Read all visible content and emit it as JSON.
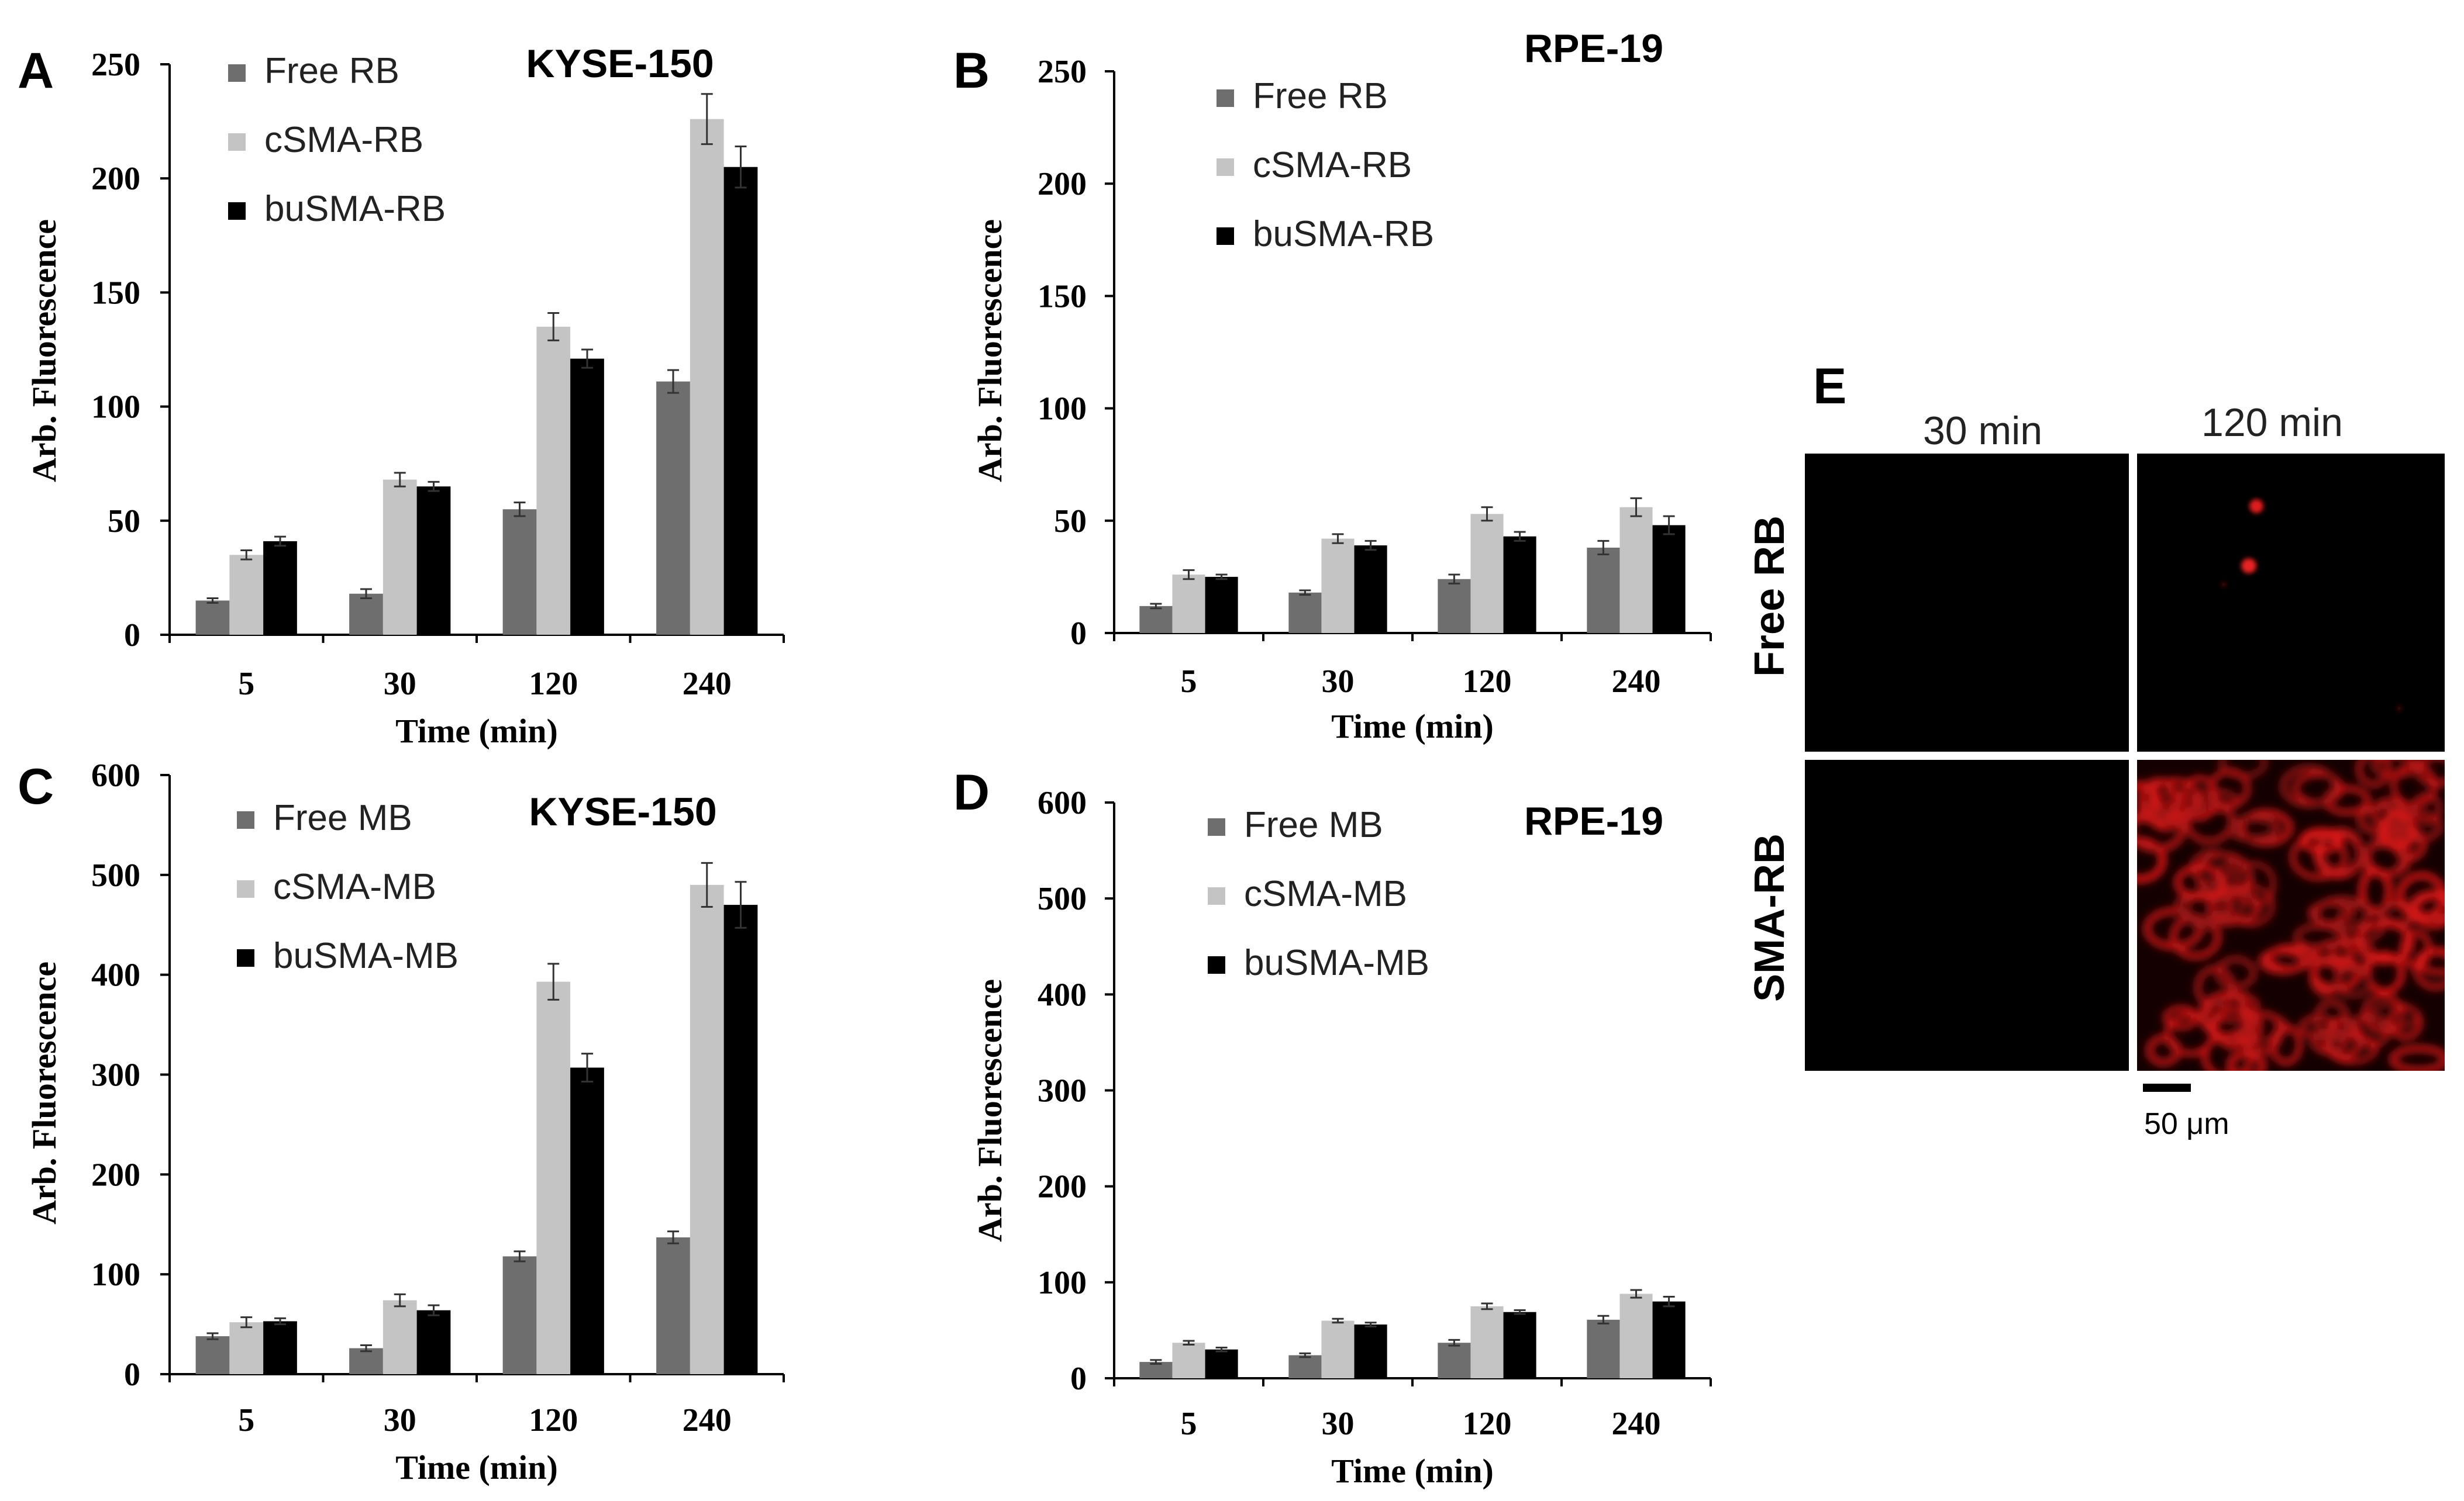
{
  "colors": {
    "free": "#6e6e6e",
    "csma": "#c4c4c4",
    "busma": "#000000",
    "axis": "#000000",
    "cell_red": "#d01515",
    "micro_bg": "#000000"
  },
  "chart_data": [
    {
      "id": "A",
      "type": "bar",
      "panel_letter": "A",
      "title": "KYSE-150",
      "xlabel": "Time (min)",
      "ylabel": "Arb. Fluorescence",
      "categories": [
        "5",
        "30",
        "120",
        "240"
      ],
      "ylim": [
        0,
        250
      ],
      "yticks": [
        0,
        50,
        100,
        150,
        200,
        250
      ],
      "legend_position": "top-left",
      "series": [
        {
          "name": "Free RB",
          "color_key": "free",
          "values": [
            15,
            18,
            55,
            111
          ],
          "errors": [
            1,
            2,
            3,
            5
          ]
        },
        {
          "name": "cSMA-RB",
          "color_key": "csma",
          "values": [
            35,
            68,
            135,
            226
          ],
          "errors": [
            2,
            3,
            6,
            11
          ]
        },
        {
          "name": "buSMA-RB",
          "color_key": "busma",
          "values": [
            41,
            65,
            121,
            205
          ],
          "errors": [
            2,
            2,
            4,
            9
          ]
        }
      ]
    },
    {
      "id": "B",
      "type": "bar",
      "panel_letter": "B",
      "title": "RPE-19",
      "xlabel": "Time (min)",
      "ylabel": "Arb. Fluorescence",
      "categories": [
        "5",
        "30",
        "120",
        "240"
      ],
      "ylim": [
        0,
        250
      ],
      "yticks": [
        0,
        50,
        100,
        150,
        200,
        250
      ],
      "legend_position": "top-left",
      "series": [
        {
          "name": "Free RB",
          "color_key": "free",
          "values": [
            12,
            18,
            24,
            38
          ],
          "errors": [
            1,
            1,
            2,
            3
          ]
        },
        {
          "name": "cSMA-RB",
          "color_key": "csma",
          "values": [
            26,
            42,
            53,
            56
          ],
          "errors": [
            2,
            2,
            3,
            4
          ]
        },
        {
          "name": "buSMA-RB",
          "color_key": "busma",
          "values": [
            25,
            39,
            43,
            48
          ],
          "errors": [
            1,
            2,
            2,
            4
          ]
        }
      ]
    },
    {
      "id": "C",
      "type": "bar",
      "panel_letter": "C",
      "title": "KYSE-150",
      "xlabel": "Time (min)",
      "ylabel": "Arb. Fluorescence",
      "categories": [
        "5",
        "30",
        "120",
        "240"
      ],
      "ylim": [
        0,
        600
      ],
      "yticks": [
        0,
        100,
        200,
        300,
        400,
        500,
        600
      ],
      "legend_position": "top-left",
      "series": [
        {
          "name": "Free MB",
          "color_key": "free",
          "values": [
            38,
            26,
            118,
            137
          ],
          "errors": [
            3,
            3,
            5,
            6
          ]
        },
        {
          "name": "cSMA-MB",
          "color_key": "csma",
          "values": [
            52,
            74,
            393,
            490
          ],
          "errors": [
            5,
            6,
            18,
            22
          ]
        },
        {
          "name": "buSMA-MB",
          "color_key": "busma",
          "values": [
            53,
            64,
            307,
            470
          ],
          "errors": [
            3,
            5,
            14,
            23
          ]
        }
      ]
    },
    {
      "id": "D",
      "type": "bar",
      "panel_letter": "D",
      "title": "RPE-19",
      "xlabel": "Time (min)",
      "ylabel": "Arb. Fluorescence",
      "categories": [
        "5",
        "30",
        "120",
        "240"
      ],
      "ylim": [
        0,
        600
      ],
      "yticks": [
        0,
        100,
        200,
        300,
        400,
        500,
        600
      ],
      "legend_position": "top-left",
      "series": [
        {
          "name": "Free MB",
          "color_key": "free",
          "values": [
            17,
            24,
            37,
            61
          ],
          "errors": [
            2,
            2,
            3,
            4
          ]
        },
        {
          "name": "cSMA-MB",
          "color_key": "csma",
          "values": [
            37,
            60,
            75,
            88
          ],
          "errors": [
            2,
            2,
            3,
            4
          ]
        },
        {
          "name": "buSMA-MB",
          "color_key": "busma",
          "values": [
            30,
            56,
            69,
            80
          ],
          "errors": [
            2,
            2,
            2,
            5
          ]
        }
      ]
    }
  ],
  "microscopy": {
    "panel_letter": "E",
    "columns": [
      "30 min",
      "120 min"
    ],
    "rows": [
      "Free RB",
      "SMA-RB"
    ],
    "scale_bar_label": "50 μm"
  }
}
